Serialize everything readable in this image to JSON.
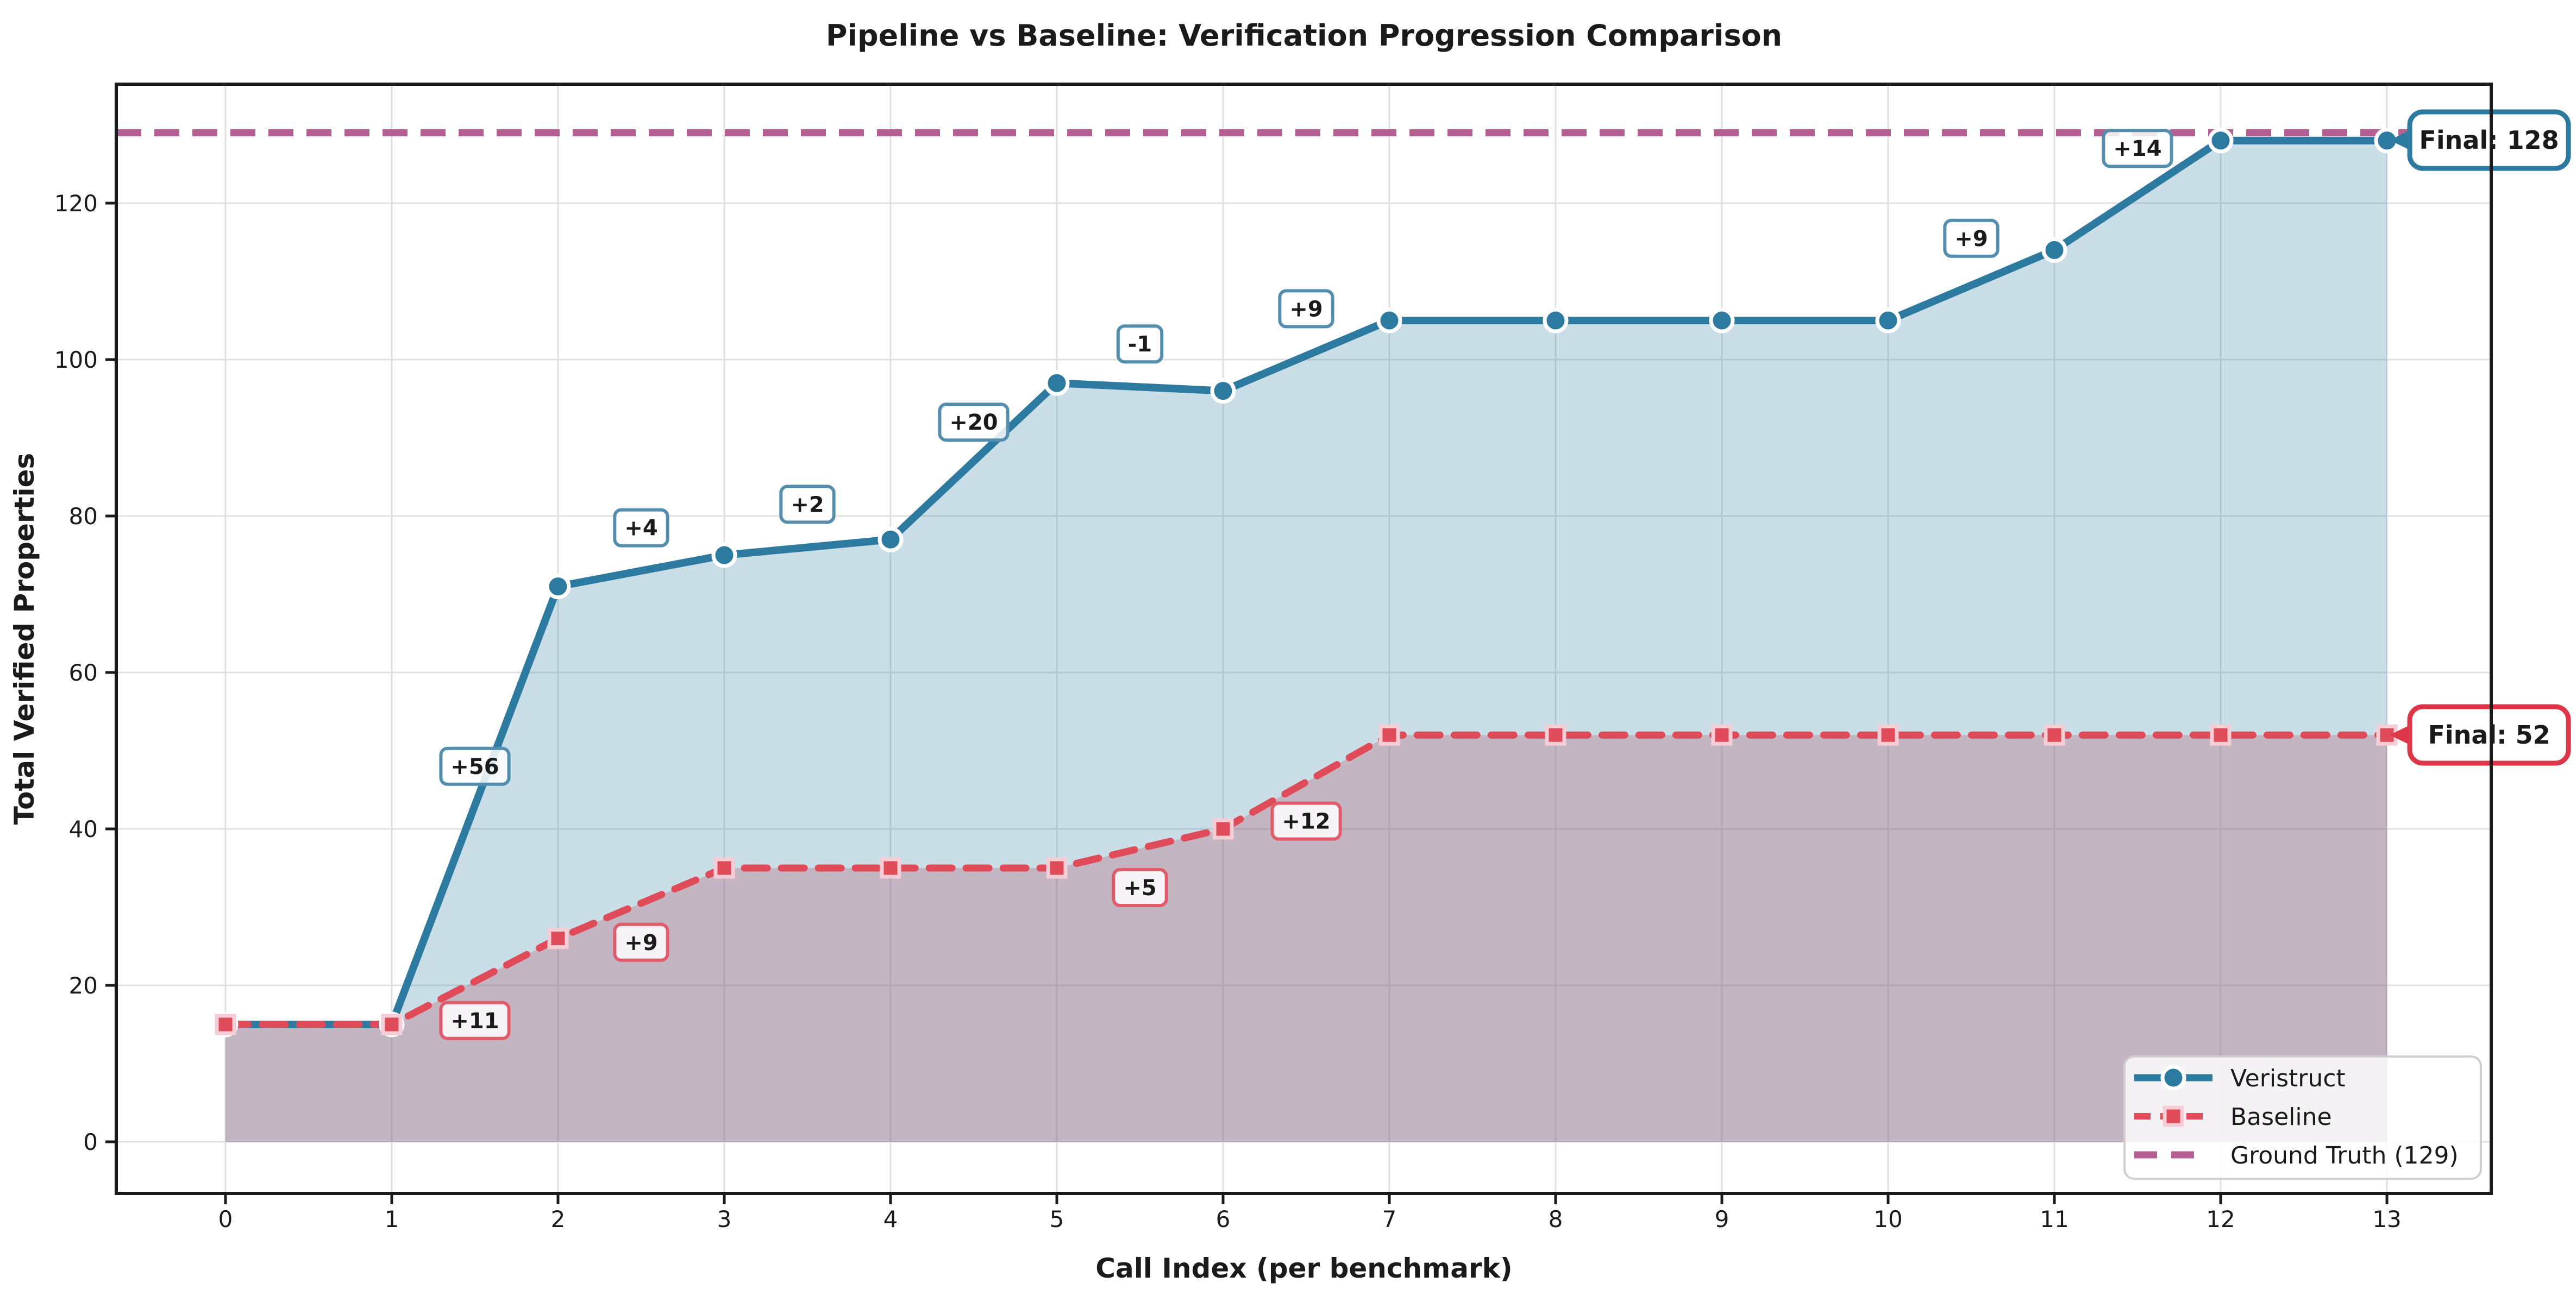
{
  "chart_data": {
    "type": "line",
    "title": "Pipeline vs Baseline: Verification Progression Comparison",
    "xlabel": "Call Index (per benchmark)",
    "ylabel": "Total Verified Properties",
    "x": [
      0,
      1,
      2,
      3,
      4,
      5,
      6,
      7,
      8,
      9,
      10,
      11,
      12,
      13
    ],
    "yticks": [
      0,
      20,
      40,
      60,
      80,
      100,
      120
    ],
    "xlim": [
      -0.66,
      13.63
    ],
    "ylim": [
      -6.6,
      135.2
    ],
    "grid": true,
    "legend_position": "lower right",
    "series": [
      {
        "name": "Veristruct",
        "color": "#2d7aa0",
        "fill_alpha": 0.25,
        "line_style": "solid",
        "marker": "circle",
        "values": [
          15,
          15,
          71,
          75,
          77,
          97,
          96,
          105,
          105,
          105,
          105,
          114,
          128,
          128
        ],
        "final_label": "Final: 128",
        "anno_border": "#548eae",
        "anno_text": "#256e93",
        "final_color": "#2d7aa0"
      },
      {
        "name": "Baseline",
        "color": "#e04b59",
        "fill_alpha": 0.3,
        "line_style": "dashed",
        "marker": "square",
        "marker_edge": "#f6cdd4",
        "values": [
          15,
          15,
          26,
          35,
          35,
          35,
          40,
          52,
          52,
          52,
          52,
          52,
          52,
          52
        ],
        "final_label": "Final: 52",
        "anno_border": "#e25b6b",
        "anno_text": "#df2c44",
        "final_color": "#de3649"
      }
    ],
    "ground_truth": {
      "name": "Ground Truth (129)",
      "value": 129,
      "color": "#b65f93"
    },
    "annotations": [
      {
        "series": 0,
        "label": "+56",
        "x": 1.5,
        "y": 48
      },
      {
        "series": 0,
        "label": "+4",
        "x": 2.5,
        "y": 78.5
      },
      {
        "series": 0,
        "label": "+2",
        "x": 3.5,
        "y": 81.5
      },
      {
        "series": 0,
        "label": "+20",
        "x": 4.5,
        "y": 92
      },
      {
        "series": 0,
        "label": "-1",
        "x": 5.5,
        "y": 102
      },
      {
        "series": 0,
        "label": "+9",
        "x": 6.5,
        "y": 106.5
      },
      {
        "series": 0,
        "label": "+9",
        "x": 10.5,
        "y": 115.5
      },
      {
        "series": 0,
        "label": "+14",
        "x": 11.5,
        "y": 127
      },
      {
        "series": 1,
        "label": "+11",
        "x": 1.5,
        "y": 15.5
      },
      {
        "series": 1,
        "label": "+9",
        "x": 2.5,
        "y": 25.5
      },
      {
        "series": 1,
        "label": "+5",
        "x": 5.5,
        "y": 32.5
      },
      {
        "series": 1,
        "label": "+12",
        "x": 6.5,
        "y": 41
      }
    ],
    "colors": {
      "grid": "#e0e0e0",
      "spine": "#1a1a1a",
      "legend_border": "#cfcfcf",
      "background": "#ffffff"
    }
  }
}
